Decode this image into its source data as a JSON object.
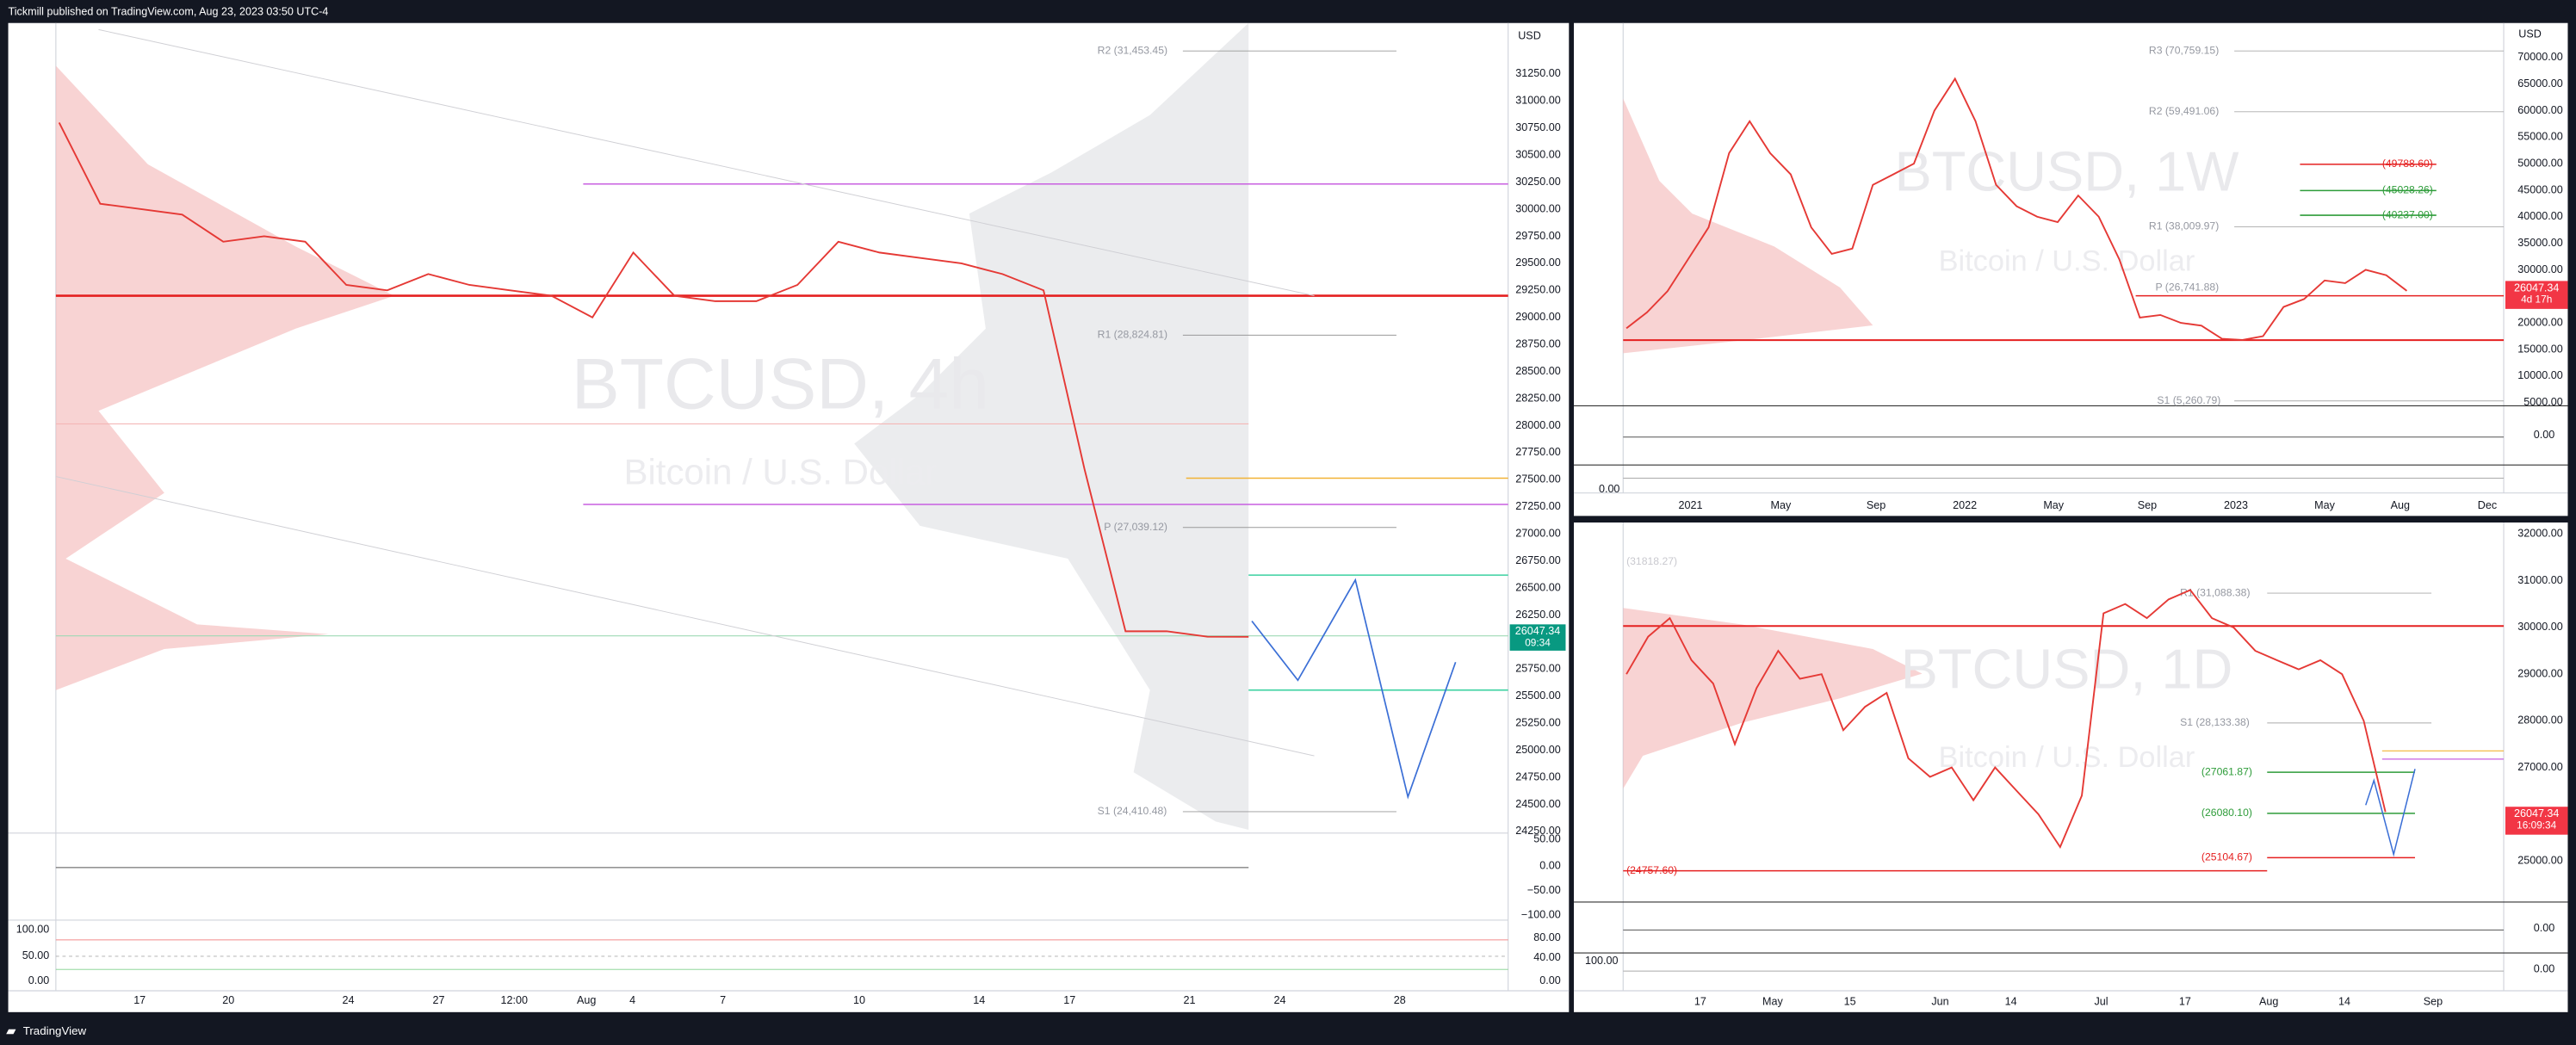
{
  "header": {
    "text": "Tickmill published on TradingView.com, Aug 23, 2023 03:50 UTC-4"
  },
  "footer": {
    "brand": "TradingView"
  },
  "panels": [
    {
      "currency": "USD",
      "symbol": "BTCUSD, 4h",
      "description": "Bitcoin / U.S. Dollar",
      "yticks": [
        {
          "value": 24250,
          "label": "24250.00"
        },
        {
          "value": 24500,
          "label": "24500.00"
        },
        {
          "value": 24750,
          "label": "24750.00"
        },
        {
          "value": 25000,
          "label": "25000.00"
        },
        {
          "value": 25250,
          "label": "25250.00"
        },
        {
          "value": 25500,
          "label": "25500.00"
        },
        {
          "value": 25750,
          "label": "25750.00"
        },
        {
          "value": 26000,
          "label": "26000.00"
        },
        {
          "value": 26250,
          "label": "26250.00"
        },
        {
          "value": 26500,
          "label": "26500.00"
        },
        {
          "value": 26750,
          "label": "26750.00"
        },
        {
          "value": 27000,
          "label": "27000.00"
        },
        {
          "value": 27250,
          "label": "27250.00"
        },
        {
          "value": 27500,
          "label": "27500.00"
        },
        {
          "value": 27750,
          "label": "27750.00"
        },
        {
          "value": 28000,
          "label": "28000.00"
        },
        {
          "value": 28250,
          "label": "28250.00"
        },
        {
          "value": 28500,
          "label": "28500.00"
        },
        {
          "value": 28750,
          "label": "28750.00"
        },
        {
          "value": 29000,
          "label": "29000.00"
        },
        {
          "value": 29250,
          "label": "29250.00"
        },
        {
          "value": 29500,
          "label": "29500.00"
        },
        {
          "value": 29750,
          "label": "29750.00"
        },
        {
          "value": 30000,
          "label": "30000.00"
        },
        {
          "value": 30250,
          "label": "30250.00"
        },
        {
          "value": 30500,
          "label": "30500.00"
        },
        {
          "value": 30750,
          "label": "30750.00"
        },
        {
          "value": 31000,
          "label": "31000.00"
        },
        {
          "value": 31250,
          "label": "31250.00"
        }
      ],
      "xlabels": [
        "17",
        "20",
        "24",
        "27",
        "12:00",
        "Aug",
        "4",
        "7",
        "10",
        "14",
        "17",
        "21",
        "24",
        "28"
      ],
      "pivots": [
        "R2 (31,453.45)",
        "R1 (28,824.81)",
        "P (27,039.12)",
        "S1 (24,410.48)"
      ],
      "levels": [],
      "price": "26047.34",
      "timer": "09:34",
      "indicator_labels": [
        "50.00",
        "0.00",
        "−50.00",
        "−100.00",
        "80.00",
        "40.00",
        "0.00",
        "100.00",
        "50.00",
        "0.00"
      ],
      "closes": [
        30800,
        30050,
        30000,
        29950,
        29700,
        29750,
        29700,
        29300,
        29250,
        29400,
        29300,
        29250,
        29200,
        29000,
        29600,
        29200,
        29150,
        29150,
        29300,
        29700,
        29600,
        29550,
        29500,
        29400,
        29250,
        27600,
        26100,
        26100,
        26050,
        26047.34
      ]
    },
    {
      "currency": "USD",
      "symbol": "BTCUSD, 1W",
      "description": "Bitcoin / U.S. Dollar",
      "yticks": [
        {
          "value": 5000,
          "label": "5000.00"
        },
        {
          "value": 10000,
          "label": "10000.00"
        },
        {
          "value": 15000,
          "label": "15000.00"
        },
        {
          "value": 20000,
          "label": "20000.00"
        },
        {
          "value": 25000,
          "label": "25000.00"
        },
        {
          "value": 30000,
          "label": "30000.00"
        },
        {
          "value": 35000,
          "label": "35000.00"
        },
        {
          "value": 40000,
          "label": "40000.00"
        },
        {
          "value": 45000,
          "label": "45000.00"
        },
        {
          "value": 50000,
          "label": "50000.00"
        },
        {
          "value": 55000,
          "label": "55000.00"
        },
        {
          "value": 60000,
          "label": "60000.00"
        },
        {
          "value": 65000,
          "label": "65000.00"
        },
        {
          "value": 70000,
          "label": "70000.00"
        }
      ],
      "xlabels": [
        "2021",
        "May",
        "Sep",
        "2022",
        "May",
        "Sep",
        "2023",
        "May",
        "Aug",
        "Dec"
      ],
      "pivots": [
        "R3 (70,759.15)",
        "R2 (59,491.06)",
        "R1 (38,009.97)",
        "P (26,741.88)",
        "S1 (5,260.79)"
      ],
      "levels": [
        "(49788.60)",
        "(45028.26)",
        "(40237.00)"
      ],
      "price": "26047.34",
      "timer": "4d 17h",
      "indicator_labels": [
        "0.00",
        "0.00"
      ],
      "closes": [
        19000,
        22000,
        26000,
        32000,
        38000,
        52000,
        58000,
        52000,
        48000,
        38000,
        33000,
        34000,
        46000,
        48000,
        50000,
        60000,
        66000,
        58000,
        46000,
        42000,
        40000,
        39000,
        44000,
        40000,
        32000,
        21000,
        21500,
        20000,
        19500,
        17000,
        16800,
        17500,
        23000,
        24500,
        28000,
        27500,
        30000,
        29000,
        26047.34
      ]
    },
    {
      "currency": "USD",
      "symbol": "BTCUSD, 1D",
      "description": "Bitcoin / U.S. Dollar",
      "yticks": [
        {
          "value": 25000,
          "label": "25000.00"
        },
        {
          "value": 26000,
          "label": "26000.00"
        },
        {
          "value": 27000,
          "label": "27000.00"
        },
        {
          "value": 28000,
          "label": "28000.00"
        },
        {
          "value": 29000,
          "label": "29000.00"
        },
        {
          "value": 30000,
          "label": "30000.00"
        },
        {
          "value": 31000,
          "label": "31000.00"
        },
        {
          "value": 32000,
          "label": "32000.00"
        }
      ],
      "xlabels": [
        "17",
        "May",
        "15",
        "Jun",
        "14",
        "Jul",
        "17",
        "Aug",
        "14",
        "Sep"
      ],
      "pivots": [
        "(31818.27)",
        "R1 (31,088.38)",
        "S1 (28,133.38)",
        "(27061.87)",
        "(26080.10)",
        "(25104.67)",
        "(24757.60)"
      ],
      "levels": [],
      "price": "26047.34",
      "timer": "16:09:34",
      "indicator_labels": [
        "0.00",
        "0.00",
        "100.00"
      ],
      "closes": [
        29000,
        29800,
        30200,
        29300,
        28800,
        27500,
        28700,
        29500,
        28900,
        29000,
        27800,
        28300,
        28600,
        27200,
        26800,
        27000,
        26300,
        27000,
        26500,
        26000,
        25300,
        26400,
        30300,
        30500,
        30200,
        30600,
        30800,
        30200,
        30000,
        29500,
        29300,
        29100,
        29300,
        29000,
        28000,
        26047.34
      ]
    }
  ]
}
